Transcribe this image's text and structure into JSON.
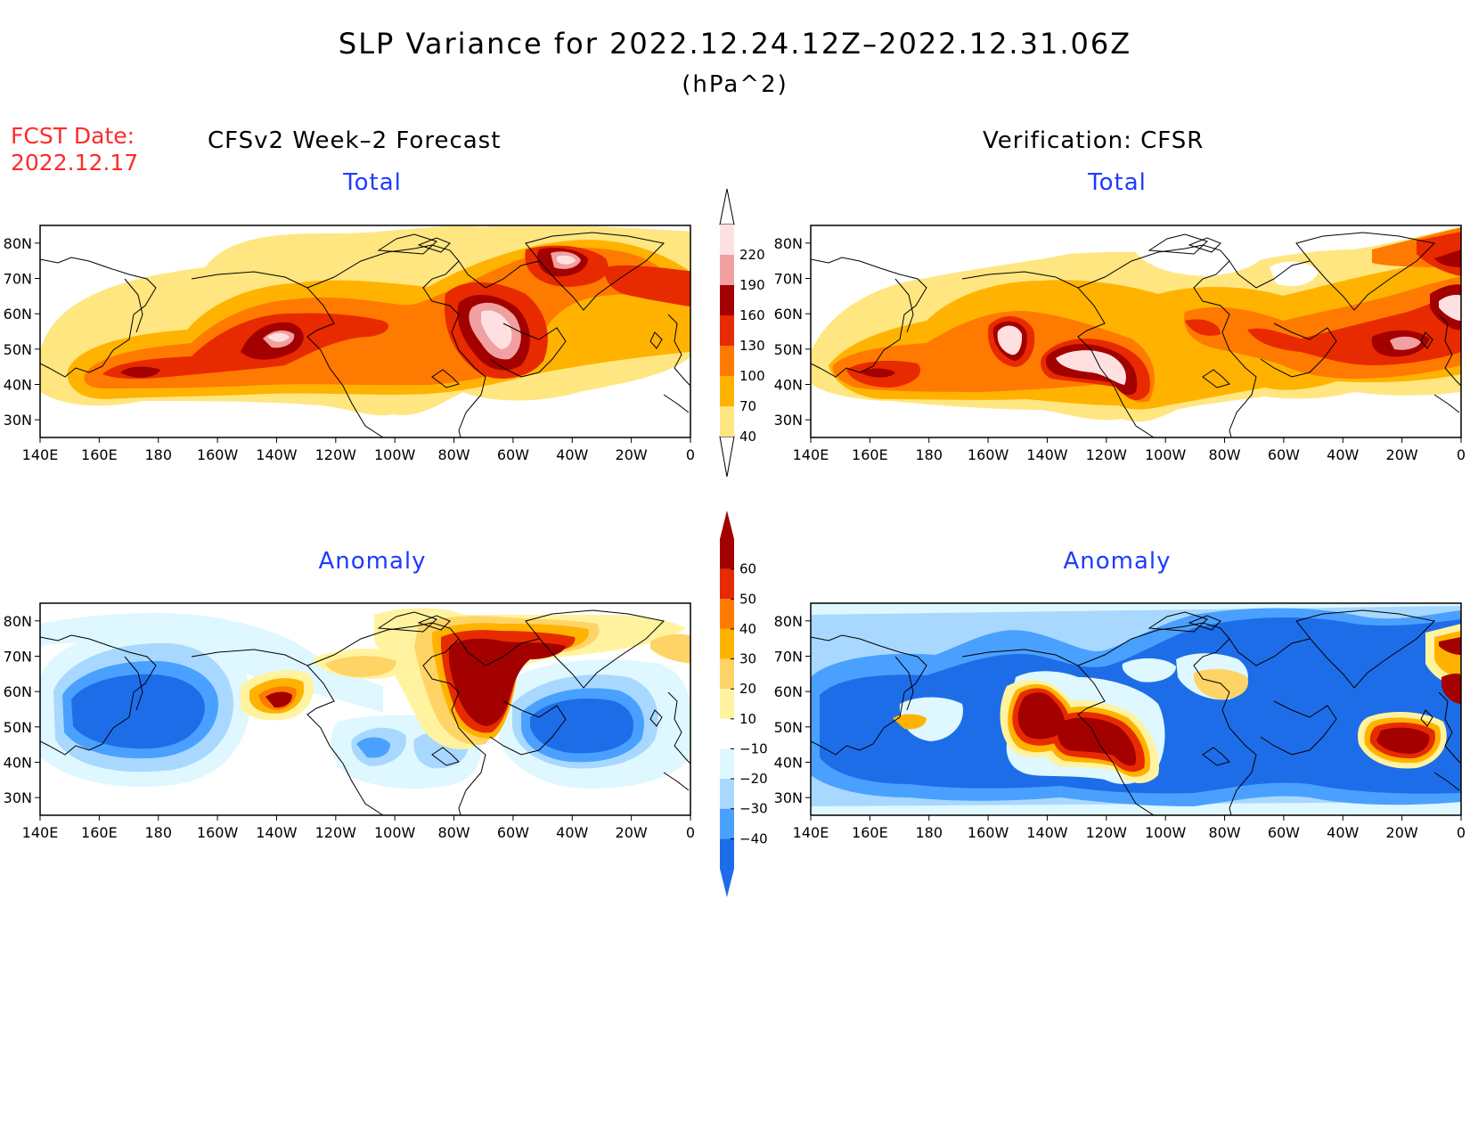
{
  "title": "SLP Variance for 2022.12.24.12Z–2022.12.31.06Z",
  "units": "(hPa^2)",
  "fcst": {
    "label": "FCST Date:",
    "date": "2022.12.17"
  },
  "columns": {
    "left": "CFSv2 Week–2 Forecast",
    "right": "Verification: CFSR"
  },
  "panels": {
    "tl": "Total",
    "tr": "Total",
    "bl": "Anomaly",
    "br": "Anomaly"
  },
  "axes": {
    "lat_labels": [
      "80N",
      "70N",
      "60N",
      "50N",
      "40N",
      "30N"
    ],
    "lon_labels": [
      "140E",
      "160E",
      "180",
      "160W",
      "140W",
      "120W",
      "100W",
      "80W",
      "60W",
      "40W",
      "20W",
      "0"
    ]
  },
  "colorbars": {
    "total": {
      "labels": [
        "40",
        "70",
        "100",
        "130",
        "160",
        "190",
        "220"
      ],
      "colors": [
        "#ffe680",
        "#ffb300",
        "#ff7a00",
        "#e82a00",
        "#a30000",
        "#f0a0a0",
        "#ffe0e0"
      ]
    },
    "anomaly": {
      "labels": [
        "60",
        "50",
        "40",
        "30",
        "20",
        "10",
        "−10",
        "−20",
        "−30",
        "−40"
      ],
      "colors_top_down": [
        "#a30000",
        "#e82a00",
        "#ff7a00",
        "#ffb300",
        "#ffd466",
        "#fff3a0",
        "#ffffff",
        "#dff7ff",
        "#a8d8ff",
        "#4aa0ff",
        "#1e6de8"
      ]
    }
  },
  "map_colors": {
    "total": [
      "#ffe680",
      "#ffb300",
      "#ff7a00",
      "#e82a00",
      "#a30000",
      "#f0a0a0",
      "#ffe0e0"
    ],
    "pos": [
      "#fff3a0",
      "#ffd466",
      "#ffb300",
      "#ff7a00",
      "#e82a00",
      "#a30000"
    ],
    "neg": [
      "#dff7ff",
      "#a8d8ff",
      "#4aa0ff",
      "#1e6de8"
    ]
  }
}
